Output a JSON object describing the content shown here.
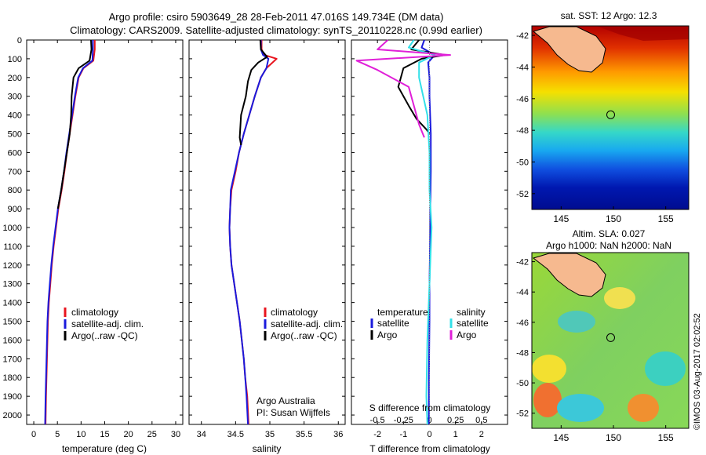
{
  "header": {
    "title_line1": "Argo profile: csiro 5903649_28 28-Feb-2011 47.016S 149.734E (DM data)",
    "title_line2": "Climatology: CARS2009. Satellite-adjusted climatology: synTS_20110228.nc (0.99d earlier)"
  },
  "colors": {
    "climatology": "#e8141e",
    "satellite": "#1a1adc",
    "argo": "#000000",
    "sal_satellite": "#33e0e8",
    "sal_argo": "#e020d8"
  },
  "depth_axis": {
    "ticks": [
      "0",
      "100",
      "200",
      "300",
      "400",
      "500",
      "600",
      "700",
      "800",
      "900",
      "1000",
      "1100",
      "1200",
      "1300",
      "1400",
      "1500",
      "1600",
      "1700",
      "1800",
      "1900",
      "2000"
    ],
    "range": [
      0,
      2050
    ]
  },
  "chart_data": [
    {
      "type": "line",
      "id": "temperature",
      "xlabel": "temperature (deg C)",
      "ylabel": "",
      "xlim": [
        -1.5,
        31.5
      ],
      "ylim": [
        2050,
        0
      ],
      "xticks": [
        "0",
        "5",
        "10",
        "15",
        "20",
        "25",
        "30"
      ],
      "legend": [
        "climatology",
        "satellite-adj. clim.",
        "Argo(..raw -QC)"
      ],
      "series": [
        {
          "name": "climatology",
          "x": [
            12.9,
            12.9,
            12.6,
            10.5,
            9.5,
            8.8,
            8.2,
            7.6,
            7.0,
            6.5,
            5.9,
            5.2,
            4.7,
            4.2,
            3.8,
            3.5,
            3.2,
            3.0,
            2.9,
            2.8,
            2.7,
            2.6,
            2.5
          ],
          "y": [
            0,
            50,
            110,
            150,
            200,
            300,
            400,
            500,
            600,
            700,
            800,
            900,
            1000,
            1100,
            1200,
            1300,
            1400,
            1500,
            1600,
            1700,
            1800,
            1900,
            2050
          ]
        },
        {
          "name": "satellite-adj. clim.",
          "x": [
            12.5,
            12.5,
            12.4,
            10.4,
            9.4,
            8.7,
            8.1,
            7.5,
            6.9,
            6.4,
            5.8,
            5.1,
            4.6,
            4.1,
            3.7,
            3.4,
            3.1,
            2.9,
            2.8,
            2.7,
            2.6,
            2.5,
            2.4
          ],
          "y": [
            0,
            50,
            110,
            150,
            200,
            300,
            400,
            500,
            600,
            700,
            800,
            900,
            1000,
            1100,
            1200,
            1300,
            1400,
            1500,
            1600,
            1700,
            1800,
            1900,
            2050
          ]
        },
        {
          "name": "Argo(..raw -QC)",
          "x": [
            12.1,
            12.2,
            11.8,
            9.5,
            8.4,
            8.0,
            7.9,
            7.6,
            7.0,
            6.4,
            5.8,
            5.1
          ],
          "y": [
            0,
            50,
            110,
            150,
            200,
            300,
            400,
            500,
            600,
            700,
            800,
            900
          ]
        }
      ]
    },
    {
      "type": "line",
      "id": "salinity",
      "xlabel": "salinity",
      "ylabel": "",
      "xlim": [
        33.82,
        36.1
      ],
      "ylim": [
        2050,
        0
      ],
      "xticks": [
        "34",
        "34.5",
        "35",
        "35.5",
        "36"
      ],
      "legend": [
        "climatology",
        "satellite-adj. clim.",
        "Argo(..raw -QC)"
      ],
      "series": [
        {
          "name": "climatology",
          "x": [
            34.88,
            34.88,
            34.92,
            35.1,
            34.95,
            34.87,
            34.78,
            34.7,
            34.62,
            34.55,
            34.5,
            34.44,
            34.42,
            34.41,
            34.42,
            34.44,
            34.48,
            34.52,
            34.56,
            34.59,
            34.62,
            34.64,
            34.67,
            34.69
          ],
          "y": [
            0,
            50,
            80,
            100,
            150,
            200,
            300,
            400,
            500,
            600,
            700,
            800,
            900,
            1000,
            1100,
            1200,
            1300,
            1400,
            1500,
            1600,
            1700,
            1800,
            1900,
            2050
          ]
        },
        {
          "name": "satellite-adj. clim.",
          "x": [
            34.87,
            34.87,
            34.9,
            34.98,
            34.95,
            34.87,
            34.78,
            34.7,
            34.62,
            34.55,
            34.49,
            34.43,
            34.42,
            34.41,
            34.42,
            34.44,
            34.48,
            34.52,
            34.56,
            34.59,
            34.62,
            34.64,
            34.66,
            34.68
          ],
          "y": [
            0,
            50,
            80,
            100,
            150,
            200,
            300,
            400,
            500,
            600,
            700,
            800,
            900,
            1000,
            1100,
            1200,
            1300,
            1400,
            1500,
            1600,
            1700,
            1800,
            1900,
            2050
          ]
        },
        {
          "name": "Argo(..raw -QC)",
          "x": [
            34.86,
            34.87,
            34.96,
            34.83,
            34.73,
            34.68,
            34.65,
            34.58,
            34.56,
            34.58
          ],
          "y": [
            0,
            50,
            90,
            120,
            160,
            220,
            300,
            400,
            520,
            560
          ]
        }
      ]
    },
    {
      "type": "line",
      "id": "difference",
      "xlabel": "T difference from climatology",
      "xlabel2": "S difference from climatology",
      "ylabel": "",
      "xlim": [
        -3.0,
        3.0
      ],
      "ylim": [
        2050,
        0
      ],
      "xticks": [
        "-2",
        "-1",
        "0",
        "1",
        "2"
      ],
      "xticks_s": [
        "-0.5",
        "-0.25",
        "0",
        "0.25",
        "0.5"
      ],
      "legend_temperature_title": "temperature",
      "legend_salinity_title": "salinity",
      "legend_temperature": [
        "satellite",
        "Argo"
      ],
      "legend_salinity": [
        "satellite",
        "Argo"
      ],
      "series": [
        {
          "name": "temperature satellite",
          "x": [
            -0.2,
            -0.3,
            0.2,
            -0.05,
            0.0,
            0.0,
            0.05,
            0.05,
            0.03,
            0.02,
            0.0,
            0.0,
            -0.02,
            -0.02
          ],
          "y": [
            0,
            40,
            80,
            120,
            200,
            300,
            500,
            700,
            900,
            1100,
            1300,
            1500,
            1800,
            2050
          ]
        },
        {
          "name": "temperature Argo",
          "x": [
            -0.4,
            -0.7,
            0.6,
            -0.3,
            -1.0,
            -1.2,
            -0.8,
            -0.5,
            -0.1,
            0.0
          ],
          "y": [
            0,
            50,
            80,
            100,
            150,
            250,
            350,
            420,
            480,
            500
          ]
        },
        {
          "name": "salinity satellite",
          "x": [
            -0.15,
            -0.2,
            0.05,
            -0.1,
            -0.1,
            -0.02,
            0.0,
            0.0,
            0.02,
            0.0,
            -0.02,
            -0.03,
            -0.02
          ],
          "y": [
            0,
            40,
            80,
            120,
            200,
            400,
            600,
            800,
            1000,
            1300,
            1600,
            1900,
            2050
          ]
        },
        {
          "name": "salinity Argo",
          "x": [
            -0.4,
            -0.5,
            0.2,
            -0.7,
            -0.5,
            -0.2,
            -0.15,
            -0.1,
            -0.05
          ],
          "y": [
            0,
            50,
            80,
            110,
            160,
            250,
            350,
            450,
            520
          ]
        }
      ]
    }
  ],
  "annotations": {
    "institution": "Argo Australia",
    "pi": "PI: Susan Wijffels"
  },
  "maps": {
    "sst": {
      "title": "sat. SST: 12 Argo: 12.3",
      "yticks": [
        "-42",
        "-44",
        "-46",
        "-48",
        "-50",
        "-52"
      ],
      "xticks": [
        "145",
        "150",
        "155"
      ],
      "lon_range": [
        142.2,
        157.2
      ],
      "lat_range": [
        -53.0,
        -41.4
      ],
      "float_lon": 149.734,
      "float_lat": -47.016
    },
    "sla": {
      "title_line1": "Altim. SLA: 0.027",
      "title_line2": "Argo h1000: NaN h2000: NaN",
      "yticks": [
        "-42",
        "-44",
        "-46",
        "-48",
        "-50",
        "-52"
      ],
      "xticks": [
        "145",
        "150",
        "155"
      ],
      "lon_range": [
        142.2,
        157.2
      ],
      "lat_range": [
        -53.0,
        -41.4
      ],
      "float_lon": 149.734,
      "float_lat": -47.016
    }
  },
  "footer": {
    "stamp": "©IMOS 03-Aug-2017 02:02:52"
  }
}
